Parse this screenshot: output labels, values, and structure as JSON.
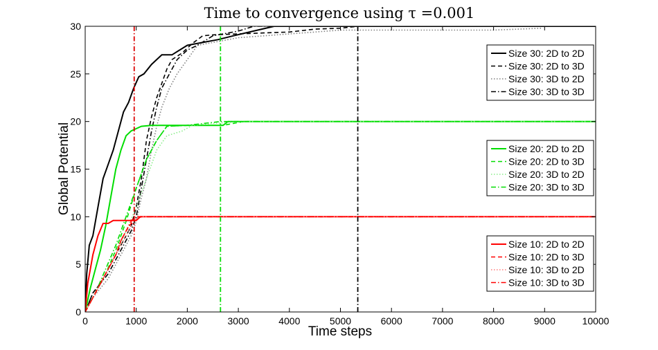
{
  "chart_data": {
    "type": "line",
    "title": "Time to convergence using τ =0.001",
    "xlabel": "Time steps",
    "ylabel": "Global Potential",
    "xlim": [
      0,
      10000
    ],
    "ylim": [
      0,
      30
    ],
    "xticks": [
      0,
      1000,
      2000,
      3000,
      4000,
      5000,
      6000,
      7000,
      8000,
      9000,
      10000
    ],
    "yticks": [
      0,
      5,
      10,
      15,
      20,
      25,
      30
    ],
    "grid": false,
    "legends": [
      {
        "placement": "upper-right",
        "entries": [
          "Size 30: 2D to 2D",
          "Size 30: 2D to 3D",
          "Size 30: 3D to 2D",
          "Size 30: 3D to 3D"
        ]
      },
      {
        "placement": "center-right",
        "entries": [
          "Size 20: 2D to 2D",
          "Size 20: 2D to 3D",
          "Size 20: 3D to 2D",
          "Size 20: 3D to 3D"
        ]
      },
      {
        "placement": "lower-right",
        "entries": [
          "Size 10: 2D to 2D",
          "Size 10: 2D to 3D",
          "Size 10: 3D to 2D",
          "Size 10: 3D to 3D"
        ]
      }
    ],
    "series": [
      {
        "name": "Size 30: 2D to 2D",
        "color": "#000000",
        "style": "solid",
        "points": [
          [
            0,
            0
          ],
          [
            30,
            4
          ],
          [
            80,
            7
          ],
          [
            150,
            8
          ],
          [
            250,
            11
          ],
          [
            350,
            14
          ],
          [
            450,
            15.5
          ],
          [
            550,
            17
          ],
          [
            650,
            19
          ],
          [
            750,
            21
          ],
          [
            850,
            22
          ],
          [
            950,
            23.5
          ],
          [
            1050,
            24.7
          ],
          [
            1150,
            25
          ],
          [
            1300,
            26
          ],
          [
            1500,
            27
          ],
          [
            1700,
            27
          ],
          [
            2000,
            28
          ],
          [
            2300,
            28.3
          ],
          [
            2600,
            28.6
          ],
          [
            2900,
            29
          ],
          [
            3300,
            29.5
          ],
          [
            3700,
            30
          ],
          [
            10000,
            30
          ]
        ]
      },
      {
        "name": "Size 30: 2D to 3D",
        "color": "#000000",
        "style": "dashed",
        "points": [
          [
            0,
            0
          ],
          [
            150,
            2
          ],
          [
            300,
            3
          ],
          [
            450,
            4.5
          ],
          [
            600,
            6
          ],
          [
            750,
            7.5
          ],
          [
            900,
            9
          ],
          [
            1000,
            11
          ],
          [
            1100,
            14
          ],
          [
            1200,
            18
          ],
          [
            1300,
            20.5
          ],
          [
            1400,
            22.5
          ],
          [
            1500,
            24
          ],
          [
            1600,
            25.5
          ],
          [
            1700,
            26.5
          ],
          [
            1900,
            27.2
          ],
          [
            2100,
            28.2
          ],
          [
            2300,
            29
          ],
          [
            2500,
            29.1
          ],
          [
            3000,
            29.2
          ],
          [
            3500,
            29.3
          ],
          [
            4000,
            29.4
          ],
          [
            4500,
            29.7
          ],
          [
            5000,
            29.8
          ],
          [
            5340,
            30
          ],
          [
            10000,
            30
          ]
        ]
      },
      {
        "name": "Size 30: 3D to 2D",
        "color": "#7f7f7f",
        "style": "dotted",
        "points": [
          [
            0,
            0
          ],
          [
            150,
            1.5
          ],
          [
            300,
            2.5
          ],
          [
            450,
            3.5
          ],
          [
            600,
            5
          ],
          [
            750,
            6.5
          ],
          [
            900,
            8
          ],
          [
            1000,
            9.5
          ],
          [
            1100,
            12
          ],
          [
            1200,
            14
          ],
          [
            1300,
            17
          ],
          [
            1400,
            19.5
          ],
          [
            1500,
            21.5
          ],
          [
            1650,
            23.5
          ],
          [
            1800,
            25
          ],
          [
            2000,
            26.5
          ],
          [
            2200,
            28
          ],
          [
            2500,
            28.3
          ],
          [
            3000,
            28.8
          ],
          [
            3500,
            29
          ],
          [
            4000,
            29.2
          ],
          [
            4500,
            29.4
          ],
          [
            5000,
            29.6
          ],
          [
            6000,
            29.6
          ],
          [
            7000,
            29.6
          ],
          [
            8000,
            29.6
          ],
          [
            8950,
            29.8
          ]
        ]
      },
      {
        "name": "Size 30: 3D to 3D",
        "color": "#000000",
        "style": "dashdot",
        "points": [
          [
            0,
            0
          ],
          [
            150,
            2
          ],
          [
            300,
            3
          ],
          [
            450,
            4
          ],
          [
            600,
            5.5
          ],
          [
            750,
            7
          ],
          [
            900,
            8.5
          ],
          [
            1000,
            10
          ],
          [
            1100,
            13
          ],
          [
            1200,
            16
          ],
          [
            1300,
            19
          ],
          [
            1400,
            21.5
          ],
          [
            1500,
            23.5
          ],
          [
            1650,
            25
          ],
          [
            1800,
            26.5
          ],
          [
            2000,
            27.5
          ],
          [
            2200,
            28
          ],
          [
            2500,
            29
          ],
          [
            3000,
            29.5
          ],
          [
            3300,
            30
          ],
          [
            10000,
            30
          ]
        ]
      },
      {
        "name": "Size 20: 2D to 2D",
        "color": "#00dd00",
        "style": "solid",
        "points": [
          [
            0,
            0
          ],
          [
            100,
            2.5
          ],
          [
            200,
            4.5
          ],
          [
            300,
            6.5
          ],
          [
            400,
            9
          ],
          [
            500,
            12
          ],
          [
            600,
            15
          ],
          [
            700,
            17
          ],
          [
            800,
            18.5
          ],
          [
            900,
            19
          ],
          [
            1100,
            19.5
          ],
          [
            1300,
            19.6
          ],
          [
            2000,
            19.6
          ],
          [
            2700,
            19.6
          ],
          [
            2800,
            20
          ],
          [
            10000,
            20
          ]
        ]
      },
      {
        "name": "Size 20: 2D to 3D",
        "color": "#00dd00",
        "style": "dashed",
        "points": [
          [
            0,
            0
          ],
          [
            200,
            2
          ],
          [
            400,
            4
          ],
          [
            600,
            6.5
          ],
          [
            800,
            9.5
          ],
          [
            1000,
            13
          ],
          [
            1200,
            16
          ],
          [
            1400,
            18
          ],
          [
            1600,
            19.5
          ],
          [
            2000,
            19.6
          ],
          [
            2700,
            19.6
          ],
          [
            3100,
            20
          ],
          [
            10000,
            20
          ]
        ]
      },
      {
        "name": "Size 20: 3D to 2D",
        "color": "#88ee88",
        "style": "dotted",
        "points": [
          [
            0,
            0
          ],
          [
            200,
            2
          ],
          [
            400,
            4
          ],
          [
            600,
            6
          ],
          [
            800,
            8.5
          ],
          [
            1000,
            11
          ],
          [
            1200,
            14
          ],
          [
            1400,
            17
          ],
          [
            1600,
            18.5
          ],
          [
            1900,
            19
          ],
          [
            2100,
            19.6
          ],
          [
            2500,
            19.8
          ],
          [
            3200,
            20
          ],
          [
            10000,
            20
          ]
        ]
      },
      {
        "name": "Size 20: 3D to 3D",
        "color": "#00dd00",
        "style": "dashdot",
        "points": [
          [
            0,
            0
          ],
          [
            200,
            2
          ],
          [
            400,
            4.5
          ],
          [
            600,
            7
          ],
          [
            800,
            10
          ],
          [
            1000,
            13
          ],
          [
            1200,
            16
          ],
          [
            1400,
            18
          ],
          [
            1600,
            19.5
          ],
          [
            2000,
            19.6
          ],
          [
            2650,
            20
          ],
          [
            10000,
            20
          ]
        ]
      },
      {
        "name": "Size 10: 2D to 2D",
        "color": "#ff0000",
        "style": "solid",
        "points": [
          [
            0,
            0
          ],
          [
            50,
            3
          ],
          [
            150,
            6
          ],
          [
            250,
            8
          ],
          [
            350,
            9.3
          ],
          [
            450,
            9.3
          ],
          [
            550,
            9.6
          ],
          [
            800,
            9.6
          ],
          [
            1000,
            9.6
          ],
          [
            1080,
            10
          ],
          [
            10000,
            10
          ]
        ]
      },
      {
        "name": "Size 10: 2D to 3D",
        "color": "#ff0000",
        "style": "dashed",
        "points": [
          [
            0,
            0
          ],
          [
            100,
            1
          ],
          [
            200,
            2
          ],
          [
            300,
            3
          ],
          [
            400,
            4
          ],
          [
            500,
            5
          ],
          [
            600,
            6
          ],
          [
            700,
            7.5
          ],
          [
            800,
            8.5
          ],
          [
            900,
            9.3
          ],
          [
            1000,
            9.7
          ],
          [
            1100,
            10
          ],
          [
            10000,
            10
          ]
        ]
      },
      {
        "name": "Size 10: 3D to 2D",
        "color": "#ff7777",
        "style": "dotted",
        "points": [
          [
            0,
            0
          ],
          [
            150,
            1.5
          ],
          [
            300,
            3
          ],
          [
            450,
            4.5
          ],
          [
            600,
            6
          ],
          [
            750,
            7.5
          ],
          [
            850,
            8.5
          ],
          [
            950,
            9.5
          ],
          [
            1050,
            10
          ],
          [
            10000,
            10
          ]
        ]
      },
      {
        "name": "Size 10: 3D to 3D",
        "color": "#ff0000",
        "style": "dashdot",
        "points": [
          [
            0,
            0
          ],
          [
            150,
            1.5
          ],
          [
            300,
            3
          ],
          [
            450,
            4.5
          ],
          [
            600,
            6
          ],
          [
            700,
            7.5
          ],
          [
            800,
            8.5
          ],
          [
            900,
            9.5
          ],
          [
            960,
            10
          ],
          [
            10000,
            10
          ]
        ]
      }
    ],
    "vlines": [
      {
        "x": 960,
        "color": "#dd0000",
        "style": "dashdot"
      },
      {
        "x": 2650,
        "color": "#00dd00",
        "style": "dashdot"
      },
      {
        "x": 5340,
        "color": "#000000",
        "style": "dashdot"
      }
    ]
  }
}
